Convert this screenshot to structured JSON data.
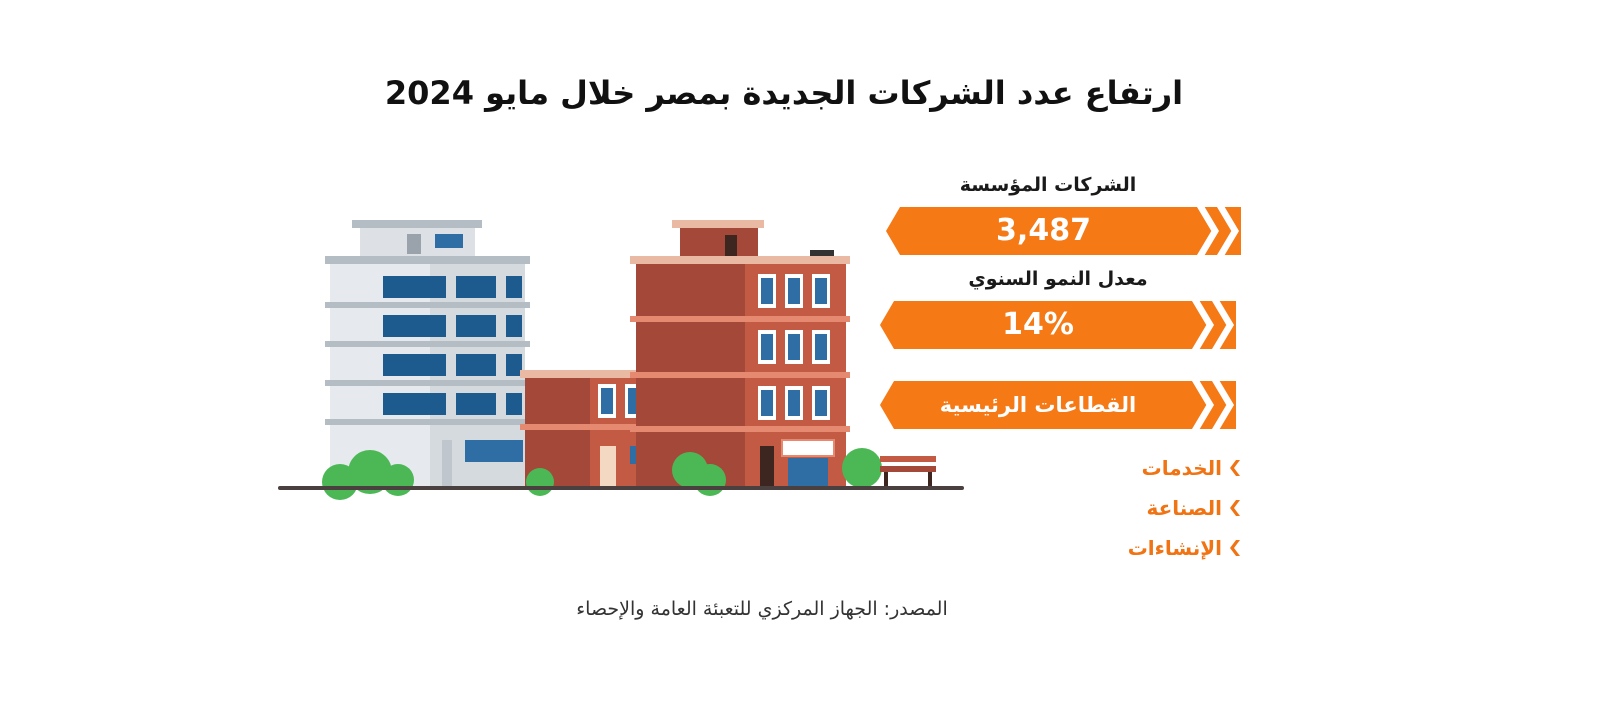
{
  "title": "ارتفاع عدد الشركات الجديدة بمصر خلال مايو 2024",
  "stats": [
    {
      "label": "الشركات المؤسسة",
      "value": "3,487"
    },
    {
      "label": "معدل النمو السنوي",
      "value": "14%"
    }
  ],
  "sectors": {
    "heading": "القطاعات الرئيسية",
    "items": [
      "الخدمات",
      "الصناعة",
      "الإنشاءات"
    ]
  },
  "source": "المصدر: الجهاز المركزي للتعبئة العامة والإحصاء",
  "colors": {
    "accent": "#f57915",
    "sector_text": "#f07314",
    "brick": "#a4483a",
    "brick_light": "#d8775e",
    "office_wall": "#dfe3e8",
    "window_blue": "#1d5b8f",
    "tree_green": "#4cb855"
  },
  "icons": [
    "chevron-right-icon",
    "building-illustration"
  ]
}
